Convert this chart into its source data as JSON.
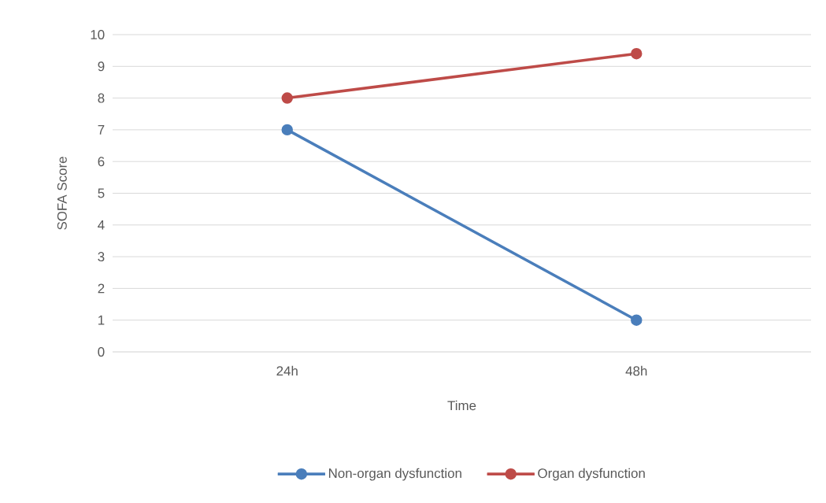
{
  "chart_data": {
    "type": "line",
    "xlabel": "Time",
    "ylabel": "SOFA Score",
    "categories": [
      "24h",
      "48h"
    ],
    "series": [
      {
        "name": "Non-organ dysfunction",
        "color": "#4a7ebb",
        "values": [
          7,
          1
        ]
      },
      {
        "name": "Organ dysfunction",
        "color": "#be4b48",
        "values": [
          8,
          9.4
        ]
      }
    ],
    "ylim": [
      0,
      10
    ],
    "yticks": [
      0,
      1,
      2,
      3,
      4,
      5,
      6,
      7,
      8,
      9,
      10
    ],
    "grid": "y",
    "legend": "bottom",
    "marker": "circle",
    "line_style": "solid"
  }
}
